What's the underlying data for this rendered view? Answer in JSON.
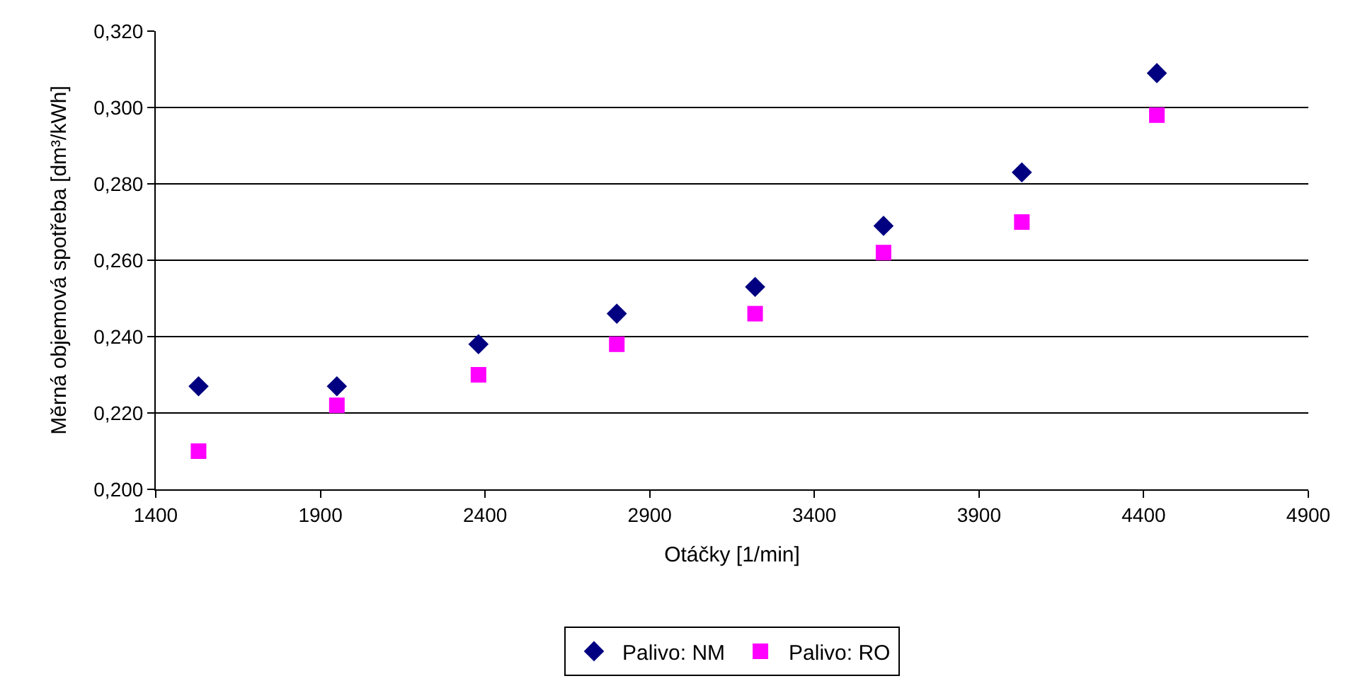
{
  "chart_data": {
    "type": "scatter",
    "xlabel": "Otáčky [1/min]",
    "ylabel": "Měrná objemová spotřeba [dm³/kWh]",
    "series": [
      {
        "name": "Palivo: NM",
        "color": "#000080",
        "marker": "diamond",
        "x": [
          1530,
          1950,
          2380,
          2800,
          3220,
          3610,
          4030,
          4440
        ],
        "values": [
          0.227,
          0.227,
          0.238,
          0.246,
          0.253,
          0.269,
          0.283,
          0.309
        ]
      },
      {
        "name": "Palivo: RO",
        "color": "#ff00ff",
        "marker": "square",
        "x": [
          1530,
          1950,
          2380,
          2800,
          3220,
          3610,
          4030,
          4440
        ],
        "values": [
          0.21,
          0.222,
          0.23,
          0.238,
          0.246,
          0.262,
          0.27,
          0.298
        ]
      }
    ],
    "xlim": [
      1400,
      4900
    ],
    "xticks": [
      1400,
      1900,
      2400,
      2900,
      3400,
      3900,
      4400,
      4900
    ],
    "ylim": [
      0.2,
      0.32
    ],
    "yticks": [
      {
        "value": 0.2,
        "label": "0,200"
      },
      {
        "value": 0.22,
        "label": "0,220"
      },
      {
        "value": 0.24,
        "label": "0,240"
      },
      {
        "value": 0.26,
        "label": "0,260"
      },
      {
        "value": 0.28,
        "label": "0,280"
      },
      {
        "value": 0.3,
        "label": "0,300"
      },
      {
        "value": 0.32,
        "label": "0,320"
      }
    ],
    "grid": "y",
    "legend": "bottom"
  }
}
